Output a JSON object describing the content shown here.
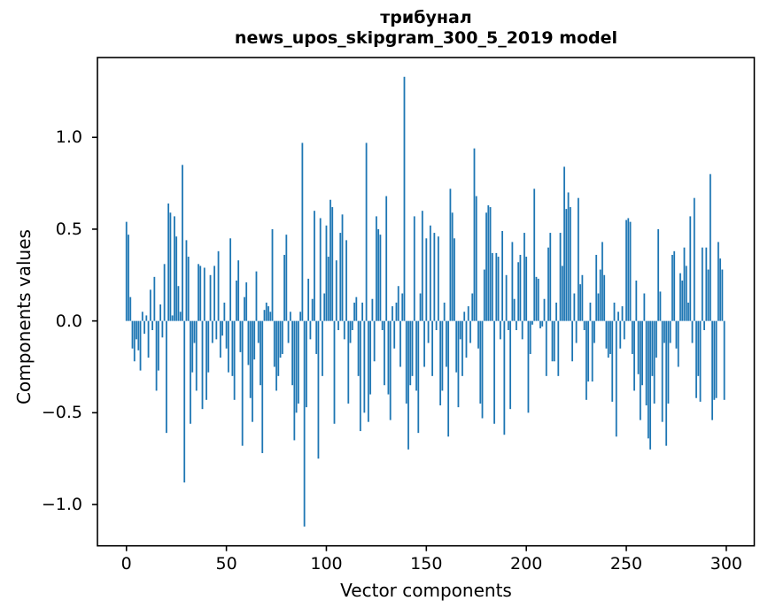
{
  "chart_data": {
    "type": "bar",
    "title": "трибунал",
    "subtitle": "news_upos_skipgram_300_5_2019 model",
    "xlabel": "Vector components",
    "ylabel": "Components values",
    "bar_color": "#1f77b4",
    "axis_color": "#000000",
    "background_color": "#ffffff",
    "grid": false,
    "legend": false,
    "xlim": [
      -14.5,
      314
    ],
    "ylim": [
      -1.225,
      1.435
    ],
    "xtick_values": [
      0,
      50,
      100,
      150,
      200,
      250,
      300
    ],
    "xtick_labels": [
      "0",
      "50",
      "100",
      "150",
      "200",
      "250",
      "300"
    ],
    "ytick_values": [
      1.0,
      0.5,
      0.0,
      -0.5,
      -1.0
    ],
    "ytick_labels": [
      "1.0",
      "0.5",
      "0.0",
      "−0.5",
      "−1.0"
    ],
    "bar_width_units": 0.8,
    "values": [
      0.54,
      0.47,
      0.13,
      -0.15,
      -0.22,
      -0.1,
      -0.16,
      -0.27,
      0.05,
      -0.07,
      0.03,
      -0.2,
      0.17,
      -0.05,
      0.24,
      -0.38,
      -0.27,
      0.09,
      -0.09,
      0.31,
      -0.61,
      0.64,
      0.59,
      0.03,
      0.57,
      0.46,
      0.19,
      0.05,
      0.85,
      -0.88,
      0.44,
      0.35,
      -0.56,
      -0.28,
      -0.12,
      -0.38,
      0.31,
      0.3,
      -0.48,
      0.29,
      -0.43,
      -0.28,
      0.25,
      -0.12,
      0.3,
      -0.1,
      0.38,
      -0.2,
      -0.08,
      0.1,
      -0.15,
      -0.28,
      0.45,
      -0.3,
      -0.43,
      0.22,
      0.33,
      -0.17,
      -0.68,
      0.13,
      0.21,
      -0.24,
      -0.42,
      -0.55,
      -0.21,
      0.27,
      -0.12,
      -0.35,
      -0.72,
      0.06,
      0.1,
      0.08,
      0.05,
      0.5,
      -0.25,
      -0.38,
      -0.3,
      -0.2,
      -0.18,
      0.36,
      0.47,
      -0.12,
      0.05,
      -0.35,
      -0.65,
      -0.5,
      -0.45,
      0.05,
      0.97,
      -1.12,
      -0.47,
      0.23,
      -0.1,
      0.12,
      0.6,
      -0.18,
      -0.75,
      0.56,
      -0.3,
      0.15,
      0.52,
      0.35,
      0.66,
      0.62,
      -0.56,
      0.33,
      -0.05,
      0.48,
      0.58,
      -0.1,
      0.44,
      -0.45,
      -0.12,
      -0.05,
      0.1,
      0.13,
      -0.3,
      -0.6,
      0.1,
      -0.5,
      0.97,
      -0.55,
      -0.4,
      0.12,
      -0.22,
      0.57,
      0.5,
      0.47,
      -0.05,
      -0.35,
      0.68,
      -0.4,
      -0.54,
      0.08,
      -0.15,
      0.1,
      0.19,
      -0.25,
      0.15,
      1.33,
      -0.45,
      -0.7,
      -0.35,
      -0.3,
      0.57,
      -0.38,
      -0.61,
      0.15,
      0.6,
      -0.25,
      0.45,
      -0.12,
      0.52,
      -0.3,
      0.48,
      -0.05,
      0.46,
      -0.46,
      -0.38,
      0.1,
      -0.25,
      -0.63,
      0.72,
      0.59,
      0.45,
      -0.28,
      -0.47,
      -0.1,
      -0.3,
      0.05,
      -0.2,
      0.08,
      -0.12,
      0.15,
      0.94,
      0.68,
      -0.15,
      -0.45,
      -0.53,
      0.28,
      0.59,
      0.63,
      0.62,
      0.37,
      -0.56,
      0.37,
      0.35,
      -0.1,
      0.49,
      -0.62,
      0.25,
      -0.05,
      -0.48,
      0.43,
      0.12,
      -0.05,
      0.32,
      0.36,
      -0.1,
      0.48,
      0.35,
      -0.5,
      -0.18,
      -0.02,
      0.72,
      0.24,
      0.23,
      -0.04,
      -0.03,
      0.12,
      -0.3,
      0.4,
      0.48,
      -0.22,
      -0.22,
      0.1,
      -0.3,
      0.48,
      0.3,
      0.84,
      0.61,
      0.7,
      0.62,
      -0.22,
      0.15,
      -0.12,
      0.67,
      0.2,
      0.25,
      -0.05,
      -0.43,
      -0.33,
      0.1,
      -0.33,
      -0.12,
      0.36,
      0.15,
      0.28,
      0.43,
      0.25,
      -0.15,
      -0.2,
      -0.18,
      -0.44,
      0.1,
      -0.63,
      0.05,
      -0.15,
      0.08,
      -0.1,
      0.55,
      0.56,
      0.54,
      -0.18,
      -0.38,
      0.22,
      -0.29,
      -0.54,
      -0.35,
      0.15,
      -0.46,
      -0.64,
      -0.7,
      -0.3,
      -0.45,
      -0.2,
      0.5,
      0.16,
      -0.55,
      -0.12,
      -0.68,
      -0.45,
      -0.12,
      0.36,
      0.38,
      -0.15,
      -0.25,
      0.26,
      0.22,
      0.4,
      0.3,
      0.1,
      0.57,
      -0.12,
      0.67,
      -0.42,
      -0.3,
      -0.44,
      0.4,
      -0.05,
      0.4,
      0.28,
      0.8,
      -0.54,
      -0.43,
      -0.42,
      0.43,
      0.34,
      0.28,
      -0.43
    ]
  }
}
